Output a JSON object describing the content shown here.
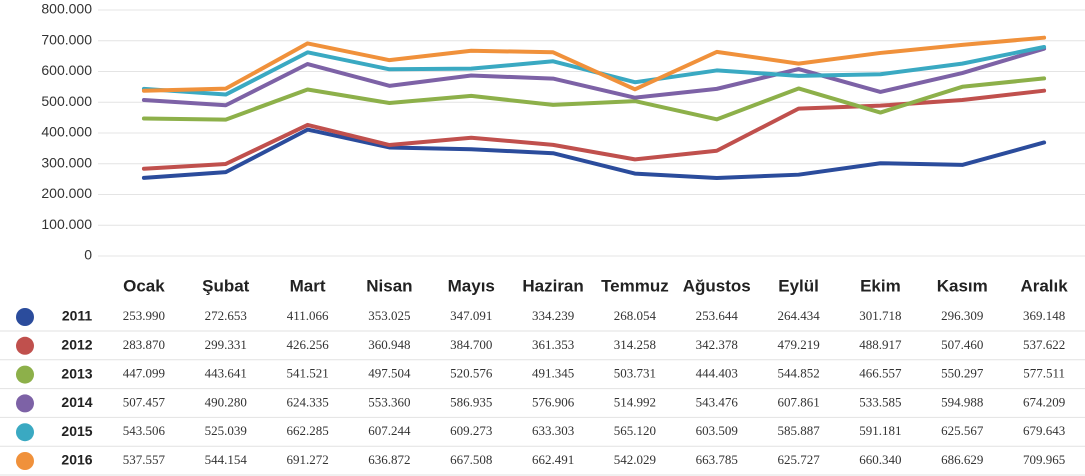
{
  "chart_data": {
    "type": "line",
    "categories": [
      "Ocak",
      "Şubat",
      "Mart",
      "Nisan",
      "Mayıs",
      "Haziran",
      "Temmuz",
      "Ağustos",
      "Eylül",
      "Ekim",
      "Kasım",
      "Aralık"
    ],
    "ylim": [
      0,
      800000
    ],
    "yticks": [
      {
        "value": 0,
        "label": "0"
      },
      {
        "value": 100000,
        "label": "100.000"
      },
      {
        "value": 200000,
        "label": "200.000"
      },
      {
        "value": 300000,
        "label": "300.000"
      },
      {
        "value": 400000,
        "label": "400.000"
      },
      {
        "value": 500000,
        "label": "500.000"
      },
      {
        "value": 600000,
        "label": "600.000"
      },
      {
        "value": 700000,
        "label": "700.000"
      },
      {
        "value": 800000,
        "label": "800.000"
      }
    ],
    "grid": true,
    "series": [
      {
        "name": "2011",
        "color": "#2b4c9c",
        "values": [
          253990,
          272653,
          411066,
          353025,
          347091,
          334239,
          268054,
          253644,
          264434,
          301718,
          296309,
          369148
        ],
        "value_labels": [
          "253.990",
          "272.653",
          "411.066",
          "353.025",
          "347.091",
          "334.239",
          "268.054",
          "253.644",
          "264.434",
          "301.718",
          "296.309",
          "369.148"
        ]
      },
      {
        "name": "2012",
        "color": "#c0504d",
        "values": [
          283870,
          299331,
          426256,
          360948,
          384700,
          361353,
          314258,
          342378,
          479219,
          488917,
          507460,
          537622
        ],
        "value_labels": [
          "283.870",
          "299.331",
          "426.256",
          "360.948",
          "384.700",
          "361.353",
          "314.258",
          "342.378",
          "479.219",
          "488.917",
          "507.460",
          "537.622"
        ]
      },
      {
        "name": "2013",
        "color": "#8db04a",
        "values": [
          447099,
          443641,
          541521,
          497504,
          520576,
          491345,
          503731,
          444403,
          544852,
          466557,
          550297,
          577511
        ],
        "value_labels": [
          "447.099",
          "443.641",
          "541.521",
          "497.504",
          "520.576",
          "491.345",
          "503.731",
          "444.403",
          "544.852",
          "466.557",
          "550.297",
          "577.511"
        ]
      },
      {
        "name": "2014",
        "color": "#7d62a6",
        "values": [
          507457,
          490280,
          624335,
          553360,
          586935,
          576906,
          514992,
          543476,
          607861,
          533585,
          594988,
          674209
        ],
        "value_labels": [
          "507.457",
          "490.280",
          "624.335",
          "553.360",
          "586.935",
          "576.906",
          "514.992",
          "543.476",
          "607.861",
          "533.585",
          "594.988",
          "674.209"
        ]
      },
      {
        "name": "2015",
        "color": "#3aa9c2",
        "values": [
          543506,
          525039,
          662285,
          607244,
          609273,
          633303,
          565120,
          603509,
          585887,
          591181,
          625567,
          679643
        ],
        "value_labels": [
          "543.506",
          "525.039",
          "662.285",
          "607.244",
          "609.273",
          "633.303",
          "565.120",
          "603.509",
          "585.887",
          "591.181",
          "625.567",
          "679.643"
        ]
      },
      {
        "name": "2016",
        "color": "#f0913b",
        "values": [
          537557,
          544154,
          691272,
          636872,
          667508,
          662491,
          542029,
          663785,
          625727,
          660340,
          686629,
          709965
        ],
        "value_labels": [
          "537.557",
          "544.154",
          "691.272",
          "636.872",
          "667.508",
          "662.491",
          "542.029",
          "663.785",
          "625.727",
          "660.340",
          "686.629",
          "709.965"
        ]
      }
    ]
  }
}
